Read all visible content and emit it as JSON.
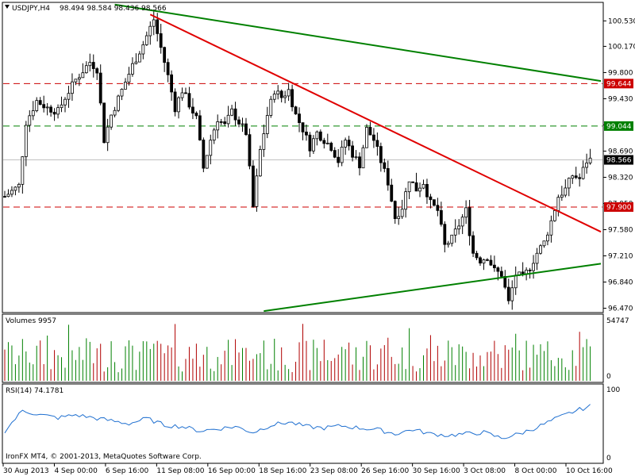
{
  "header": {
    "symbol": "USDJPY,H4",
    "ohlc": "98.494 98.584 98.436 98.566"
  },
  "volume_panel": {
    "title": "Volumes 9957",
    "max_label": "54747",
    "min_label": "0"
  },
  "rsi_panel": {
    "title": "RSI(14) 74.1781",
    "max_label": "100",
    "min_label": "0"
  },
  "copyright": "IronFX MT4, © 2001-2013, MetaQuotes Software Corp.",
  "colors": {
    "background": "#ffffff",
    "candle": "#000000",
    "support_resistance": "#cc0000",
    "green_levels": "#008000",
    "trendline_red": "#e00000",
    "trendline_green": "#008000",
    "volume_bars": "#008000",
    "volume_bars_down": "#b00000",
    "rsi_line": "#1e6fd0",
    "current_price_bg": "#000000"
  },
  "chart_data": {
    "type": "candlestick",
    "symbol": "USDJPY",
    "timeframe": "H4",
    "y_ticks": [
      "100.530",
      "100.170",
      "99.800",
      "99.430",
      "99.060",
      "98.690",
      "98.320",
      "97.950",
      "97.580",
      "97.210",
      "96.840",
      "96.470"
    ],
    "ylim": [
      96.42,
      100.78
    ],
    "x_ticks": [
      "30 Aug 2013",
      "4 Sep 00:00",
      "6 Sep 16:00",
      "11 Sep 08:00",
      "16 Sep 00:00",
      "18 Sep 16:00",
      "23 Sep 08:00",
      "26 Sep 16:00",
      "30 Sep 16:00",
      "3 Oct 08:00",
      "8 Oct 00:00",
      "10 Oct 16:00"
    ],
    "horizontal_levels": [
      {
        "value": 99.644,
        "label": "99.644",
        "color": "#cc0000",
        "style": "dashed"
      },
      {
        "value": 99.044,
        "label": "99.044",
        "color": "#008000",
        "style": "dashed"
      },
      {
        "value": 97.9,
        "label": "97.900",
        "color": "#cc0000",
        "style": "dashed"
      }
    ],
    "current_price": {
      "value": 98.566,
      "label": "98.566"
    },
    "trendlines": [
      {
        "color": "#008000",
        "from_bar": 31,
        "from_value": 100.76,
        "to_bar": 168,
        "to_value": 99.68
      },
      {
        "color": "#e00000",
        "from_bar": 41,
        "from_value": 100.62,
        "to_bar": 168,
        "to_value": 97.55
      },
      {
        "color": "#008000",
        "from_bar": 73,
        "from_value": 96.43,
        "to_bar": 168,
        "to_value": 97.1
      }
    ],
    "close_path": [
      [
        0,
        98.05
      ],
      [
        4,
        98.2
      ],
      [
        6,
        99.1
      ],
      [
        9,
        99.4
      ],
      [
        12,
        99.3
      ],
      [
        15,
        99.25
      ],
      [
        17,
        99.45
      ],
      [
        20,
        99.7
      ],
      [
        24,
        99.95
      ],
      [
        26,
        99.85
      ],
      [
        28,
        98.85
      ],
      [
        30,
        99.2
      ],
      [
        33,
        99.55
      ],
      [
        36,
        99.9
      ],
      [
        39,
        100.2
      ],
      [
        42,
        100.55
      ],
      [
        44,
        100.15
      ],
      [
        46,
        99.75
      ],
      [
        48,
        99.3
      ],
      [
        50,
        99.55
      ],
      [
        52,
        99.35
      ],
      [
        54,
        99.15
      ],
      [
        56,
        98.45
      ],
      [
        58,
        98.85
      ],
      [
        60,
        99.15
      ],
      [
        62,
        99.05
      ],
      [
        64,
        99.25
      ],
      [
        66,
        99.1
      ],
      [
        68,
        98.95
      ],
      [
        70,
        97.9
      ],
      [
        72,
        98.7
      ],
      [
        74,
        99.2
      ],
      [
        76,
        99.55
      ],
      [
        78,
        99.45
      ],
      [
        80,
        99.55
      ],
      [
        82,
        99.2
      ],
      [
        84,
        99.0
      ],
      [
        86,
        98.75
      ],
      [
        88,
        98.95
      ],
      [
        90,
        98.85
      ],
      [
        92,
        98.75
      ],
      [
        94,
        98.55
      ],
      [
        96,
        98.85
      ],
      [
        98,
        98.65
      ],
      [
        100,
        98.5
      ],
      [
        102,
        99.0
      ],
      [
        104,
        98.85
      ],
      [
        106,
        98.55
      ],
      [
        108,
        98.25
      ],
      [
        110,
        97.75
      ],
      [
        112,
        97.9
      ],
      [
        114,
        98.3
      ],
      [
        116,
        98.15
      ],
      [
        118,
        98.25
      ],
      [
        120,
        97.95
      ],
      [
        122,
        97.85
      ],
      [
        124,
        97.35
      ],
      [
        126,
        97.45
      ],
      [
        128,
        97.65
      ],
      [
        130,
        97.85
      ],
      [
        132,
        97.25
      ],
      [
        134,
        97.15
      ],
      [
        136,
        97.2
      ],
      [
        138,
        97.0
      ],
      [
        140,
        96.95
      ],
      [
        142,
        96.55
      ],
      [
        144,
        96.95
      ],
      [
        146,
        96.9
      ],
      [
        148,
        97.05
      ],
      [
        150,
        97.25
      ],
      [
        152,
        97.4
      ],
      [
        154,
        97.7
      ],
      [
        156,
        98.05
      ],
      [
        158,
        98.15
      ],
      [
        160,
        98.35
      ],
      [
        162,
        98.3
      ],
      [
        164,
        98.55
      ],
      [
        165,
        98.57
      ]
    ],
    "volumes_series": {
      "name": "Volumes",
      "max": 54747,
      "last": 9957
    },
    "rsi_series": {
      "name": "RSI(14)",
      "last": 74.1781,
      "ylim": [
        0,
        100
      ],
      "path": [
        [
          0,
          40
        ],
        [
          5,
          68
        ],
        [
          10,
          62
        ],
        [
          15,
          58
        ],
        [
          20,
          62
        ],
        [
          25,
          58
        ],
        [
          30,
          54
        ],
        [
          35,
          50
        ],
        [
          40,
          57
        ],
        [
          45,
          48
        ],
        [
          50,
          46
        ],
        [
          55,
          40
        ],
        [
          60,
          43
        ],
        [
          65,
          46
        ],
        [
          70,
          38
        ],
        [
          75,
          48
        ],
        [
          80,
          52
        ],
        [
          85,
          46
        ],
        [
          90,
          44
        ],
        [
          95,
          47
        ],
        [
          100,
          44
        ],
        [
          105,
          42
        ],
        [
          110,
          36
        ],
        [
          115,
          42
        ],
        [
          120,
          36
        ],
        [
          125,
          34
        ],
        [
          130,
          36
        ],
        [
          135,
          38
        ],
        [
          140,
          30
        ],
        [
          145,
          36
        ],
        [
          150,
          45
        ],
        [
          155,
          56
        ],
        [
          160,
          66
        ],
        [
          165,
          74
        ]
      ]
    }
  }
}
